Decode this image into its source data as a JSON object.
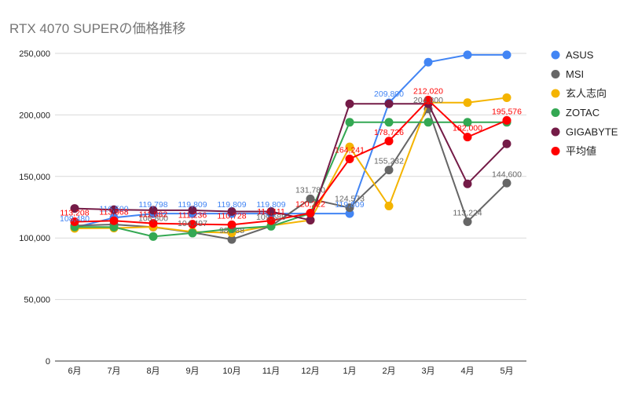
{
  "chart_data": {
    "type": "line",
    "title": "RTX 4070 SUPERの価格推移",
    "categories": [
      "6月",
      "7月",
      "8月",
      "9月",
      "10月",
      "11月",
      "12月",
      "1月",
      "2月",
      "3月",
      "4月",
      "5月"
    ],
    "ylim": [
      0,
      250000
    ],
    "yticks": [
      "0",
      "50,000",
      "100,000",
      "150,000",
      "200,000",
      "250,000"
    ],
    "ytick_values": [
      0,
      50000,
      100000,
      150000,
      200000,
      250000
    ],
    "grid": true,
    "legend_position": "right",
    "series": [
      {
        "name": "ASUS",
        "color": "#4285f4",
        "values": [
          108480,
          116500,
          119798,
          119809,
          119809,
          119809,
          119809,
          119809,
          209800,
          242800,
          248800,
          248800
        ],
        "labels": [
          "108,480",
          "116,500",
          "119,798",
          "119,809",
          "119,809",
          "119,809",
          "",
          "119,809",
          "209,800",
          "",
          "",
          ""
        ]
      },
      {
        "name": "MSI",
        "color": "#666666",
        "values": [
          110000,
          111000,
          108800,
          104497,
          98788,
          109689,
          131780,
          124573,
          155232,
          204800,
          113224,
          144600
        ],
        "labels": [
          "",
          "",
          "108,800",
          "104,497",
          "98,788",
          "109,689",
          "131,780",
          "124,573",
          "155,232",
          "204,800",
          "113,224",
          "144,600"
        ]
      },
      {
        "name": "玄人志向",
        "color": "#f4b400",
        "values": [
          107800,
          108000,
          109000,
          105000,
          104200,
          110000,
          114500,
          174000,
          126000,
          210000,
          210000,
          214000
        ],
        "labels": [
          "",
          "",
          "",
          "",
          "",
          "",
          "",
          "",
          "",
          "",
          "",
          ""
        ]
      },
      {
        "name": "ZOTAC",
        "color": "#34a853",
        "values": [
          109000,
          108800,
          101200,
          104000,
          107500,
          109500,
          120000,
          194000,
          194000,
          194000,
          194000,
          194000
        ],
        "labels": [
          "",
          "",
          "",
          "",
          "",
          "",
          "",
          "",
          "",
          "",
          "",
          ""
        ]
      },
      {
        "name": "GIGABYTE",
        "color": "#741b47",
        "values": [
          124000,
          123000,
          122500,
          122500,
          121500,
          121500,
          114500,
          209000,
          209000,
          209000,
          144000,
          176500
        ],
        "labels": [
          "",
          "",
          "",
          "",
          "",
          "",
          "",
          "",
          "",
          "",
          "",
          ""
        ]
      },
      {
        "name": "平均値",
        "color": "#ff0000",
        "values": [
          113208,
          113968,
          111882,
          111236,
          110728,
          114111,
          120222,
          164241,
          178726,
          212020,
          182000,
          195576
        ],
        "labels": [
          "113,208",
          "113,968",
          "111,882",
          "111,236",
          "110,728",
          "114,111",
          "120,222",
          "164,241",
          "178,726",
          "212,020",
          "182,000",
          "195,576"
        ]
      }
    ]
  }
}
